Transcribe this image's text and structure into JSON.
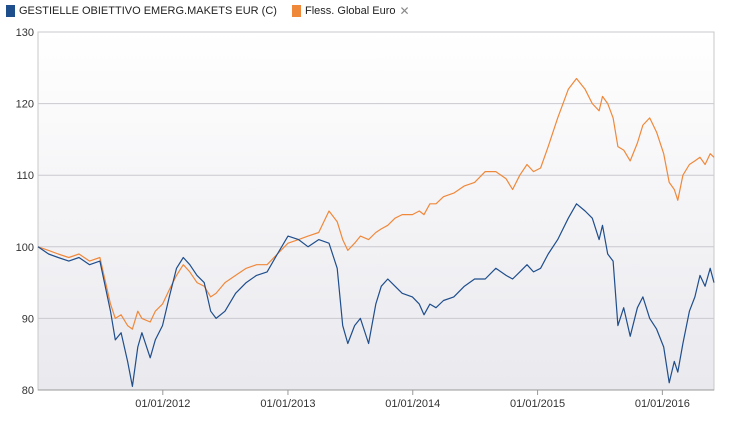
{
  "chart_data": {
    "type": "line",
    "title": "",
    "xlabel": "",
    "ylabel": "",
    "ylim": [
      80,
      130
    ],
    "xlim": [
      "2011-01-01",
      "2016-05-31"
    ],
    "y_ticks": [
      "80",
      "90",
      "100",
      "110",
      "120",
      "130"
    ],
    "x_ticks": [
      {
        "label": "01/01/2012",
        "date": "2012-01-01"
      },
      {
        "label": "01/01/2013",
        "date": "2013-01-01"
      },
      {
        "label": "01/01/2014",
        "date": "2014-01-01"
      },
      {
        "label": "01/01/2015",
        "date": "2015-01-01"
      },
      {
        "label": "01/01/2016",
        "date": "2016-01-01"
      }
    ],
    "grid": "horizontal",
    "legend_position": "top-left",
    "series": [
      {
        "name": "GESTIELLE OBIETTIVO EMERG.MAKETS EUR (C)",
        "color": "#1f4e8c",
        "points": [
          [
            "2011-01-01",
            100
          ],
          [
            "2011-02-01",
            99
          ],
          [
            "2011-03-01",
            98.5
          ],
          [
            "2011-04-01",
            98
          ],
          [
            "2011-05-01",
            98.5
          ],
          [
            "2011-06-01",
            97.5
          ],
          [
            "2011-07-01",
            98
          ],
          [
            "2011-08-01",
            91
          ],
          [
            "2011-08-15",
            87
          ],
          [
            "2011-09-01",
            88
          ],
          [
            "2011-09-20",
            84
          ],
          [
            "2011-10-04",
            80.5
          ],
          [
            "2011-10-20",
            86
          ],
          [
            "2011-11-01",
            88
          ],
          [
            "2011-11-25",
            84.5
          ],
          [
            "2011-12-10",
            87
          ],
          [
            "2011-12-31",
            89
          ],
          [
            "2012-01-20",
            93
          ],
          [
            "2012-02-10",
            97
          ],
          [
            "2012-03-01",
            98.5
          ],
          [
            "2012-03-20",
            97.5
          ],
          [
            "2012-04-10",
            96
          ],
          [
            "2012-05-01",
            95
          ],
          [
            "2012-05-20",
            91
          ],
          [
            "2012-06-05",
            90
          ],
          [
            "2012-07-01",
            91
          ],
          [
            "2012-08-01",
            93.5
          ],
          [
            "2012-09-01",
            95
          ],
          [
            "2012-10-01",
            96
          ],
          [
            "2012-11-01",
            96.5
          ],
          [
            "2012-12-01",
            99
          ],
          [
            "2013-01-01",
            101.5
          ],
          [
            "2013-02-01",
            101
          ],
          [
            "2013-03-01",
            100
          ],
          [
            "2013-04-01",
            101
          ],
          [
            "2013-05-01",
            100.5
          ],
          [
            "2013-05-25",
            97
          ],
          [
            "2013-06-10",
            89
          ],
          [
            "2013-06-25",
            86.5
          ],
          [
            "2013-07-15",
            89
          ],
          [
            "2013-08-01",
            90
          ],
          [
            "2013-08-25",
            86.5
          ],
          [
            "2013-09-15",
            92
          ],
          [
            "2013-10-01",
            94.5
          ],
          [
            "2013-10-20",
            95.5
          ],
          [
            "2013-11-10",
            94.5
          ],
          [
            "2013-12-01",
            93.5
          ],
          [
            "2013-12-31",
            93
          ],
          [
            "2014-01-20",
            92
          ],
          [
            "2014-02-03",
            90.5
          ],
          [
            "2014-02-20",
            92
          ],
          [
            "2014-03-10",
            91.5
          ],
          [
            "2014-04-01",
            92.5
          ],
          [
            "2014-05-01",
            93
          ],
          [
            "2014-06-01",
            94.5
          ],
          [
            "2014-07-01",
            95.5
          ],
          [
            "2014-08-01",
            95.5
          ],
          [
            "2014-09-01",
            97
          ],
          [
            "2014-10-01",
            96
          ],
          [
            "2014-10-20",
            95.5
          ],
          [
            "2014-11-10",
            96.5
          ],
          [
            "2014-12-01",
            97.5
          ],
          [
            "2014-12-20",
            96.5
          ],
          [
            "2015-01-10",
            97
          ],
          [
            "2015-02-01",
            99
          ],
          [
            "2015-03-01",
            101
          ],
          [
            "2015-04-01",
            104
          ],
          [
            "2015-04-25",
            106
          ],
          [
            "2015-05-20",
            105
          ],
          [
            "2015-06-10",
            104
          ],
          [
            "2015-06-30",
            101
          ],
          [
            "2015-07-10",
            103
          ],
          [
            "2015-07-25",
            99
          ],
          [
            "2015-08-10",
            98
          ],
          [
            "2015-08-24",
            89
          ],
          [
            "2015-09-10",
            91.5
          ],
          [
            "2015-09-29",
            87.5
          ],
          [
            "2015-10-20",
            91.5
          ],
          [
            "2015-11-05",
            93
          ],
          [
            "2015-11-25",
            90
          ],
          [
            "2015-12-15",
            88.5
          ],
          [
            "2016-01-05",
            86
          ],
          [
            "2016-01-21",
            81
          ],
          [
            "2016-02-05",
            84
          ],
          [
            "2016-02-15",
            82.5
          ],
          [
            "2016-03-01",
            86.5
          ],
          [
            "2016-03-20",
            91
          ],
          [
            "2016-04-05",
            93
          ],
          [
            "2016-04-20",
            96
          ],
          [
            "2016-05-05",
            94.5
          ],
          [
            "2016-05-20",
            97
          ],
          [
            "2016-05-31",
            95
          ]
        ]
      },
      {
        "name": "Fless. Global Euro",
        "color": "#f0883a",
        "points": [
          [
            "2011-01-01",
            100
          ],
          [
            "2011-02-01",
            99.5
          ],
          [
            "2011-03-01",
            99
          ],
          [
            "2011-04-01",
            98.5
          ],
          [
            "2011-05-01",
            99
          ],
          [
            "2011-06-01",
            98
          ],
          [
            "2011-07-01",
            98.5
          ],
          [
            "2011-08-01",
            92
          ],
          [
            "2011-08-15",
            90
          ],
          [
            "2011-09-01",
            90.5
          ],
          [
            "2011-09-20",
            89
          ],
          [
            "2011-10-04",
            88.5
          ],
          [
            "2011-10-20",
            91
          ],
          [
            "2011-11-01",
            90
          ],
          [
            "2011-11-25",
            89.5
          ],
          [
            "2011-12-10",
            91
          ],
          [
            "2011-12-31",
            92
          ],
          [
            "2012-01-20",
            94
          ],
          [
            "2012-02-10",
            96
          ],
          [
            "2012-03-01",
            97.5
          ],
          [
            "2012-03-20",
            96.5
          ],
          [
            "2012-04-10",
            95
          ],
          [
            "2012-05-01",
            94.5
          ],
          [
            "2012-05-20",
            93
          ],
          [
            "2012-06-05",
            93.5
          ],
          [
            "2012-07-01",
            95
          ],
          [
            "2012-08-01",
            96
          ],
          [
            "2012-09-01",
            97
          ],
          [
            "2012-10-01",
            97.5
          ],
          [
            "2012-11-01",
            97.5
          ],
          [
            "2012-12-01",
            99
          ],
          [
            "2013-01-01",
            100.5
          ],
          [
            "2013-02-01",
            101
          ],
          [
            "2013-03-01",
            101.5
          ],
          [
            "2013-04-01",
            102
          ],
          [
            "2013-05-01",
            105
          ],
          [
            "2013-05-25",
            103.5
          ],
          [
            "2013-06-10",
            101
          ],
          [
            "2013-06-25",
            99.5
          ],
          [
            "2013-07-15",
            100.5
          ],
          [
            "2013-08-01",
            101.5
          ],
          [
            "2013-08-25",
            101
          ],
          [
            "2013-09-15",
            102
          ],
          [
            "2013-10-01",
            102.5
          ],
          [
            "2013-10-20",
            103
          ],
          [
            "2013-11-10",
            104
          ],
          [
            "2013-12-01",
            104.5
          ],
          [
            "2013-12-31",
            104.5
          ],
          [
            "2014-01-20",
            105
          ],
          [
            "2014-02-03",
            104.5
          ],
          [
            "2014-02-20",
            106
          ],
          [
            "2014-03-10",
            106
          ],
          [
            "2014-04-01",
            107
          ],
          [
            "2014-05-01",
            107.5
          ],
          [
            "2014-06-01",
            108.5
          ],
          [
            "2014-07-01",
            109
          ],
          [
            "2014-08-01",
            110.5
          ],
          [
            "2014-09-01",
            110.5
          ],
          [
            "2014-10-01",
            109.5
          ],
          [
            "2014-10-20",
            108
          ],
          [
            "2014-11-10",
            110
          ],
          [
            "2014-12-01",
            111.5
          ],
          [
            "2014-12-20",
            110.5
          ],
          [
            "2015-01-10",
            111
          ],
          [
            "2015-02-01",
            114
          ],
          [
            "2015-03-01",
            118
          ],
          [
            "2015-04-01",
            122
          ],
          [
            "2015-04-25",
            123.5
          ],
          [
            "2015-05-20",
            122
          ],
          [
            "2015-06-10",
            120
          ],
          [
            "2015-06-30",
            119
          ],
          [
            "2015-07-10",
            121
          ],
          [
            "2015-07-25",
            120
          ],
          [
            "2015-08-10",
            118
          ],
          [
            "2015-08-24",
            114
          ],
          [
            "2015-09-10",
            113.5
          ],
          [
            "2015-09-29",
            112
          ],
          [
            "2015-10-20",
            114.5
          ],
          [
            "2015-11-05",
            117
          ],
          [
            "2015-11-25",
            118
          ],
          [
            "2015-12-15",
            116
          ],
          [
            "2016-01-05",
            113
          ],
          [
            "2016-01-21",
            109
          ],
          [
            "2016-02-05",
            108
          ],
          [
            "2016-02-15",
            106.5
          ],
          [
            "2016-03-01",
            110
          ],
          [
            "2016-03-20",
            111.5
          ],
          [
            "2016-04-05",
            112
          ],
          [
            "2016-04-20",
            112.5
          ],
          [
            "2016-05-05",
            111.5
          ],
          [
            "2016-05-20",
            113
          ],
          [
            "2016-05-31",
            112.5
          ]
        ]
      }
    ]
  }
}
